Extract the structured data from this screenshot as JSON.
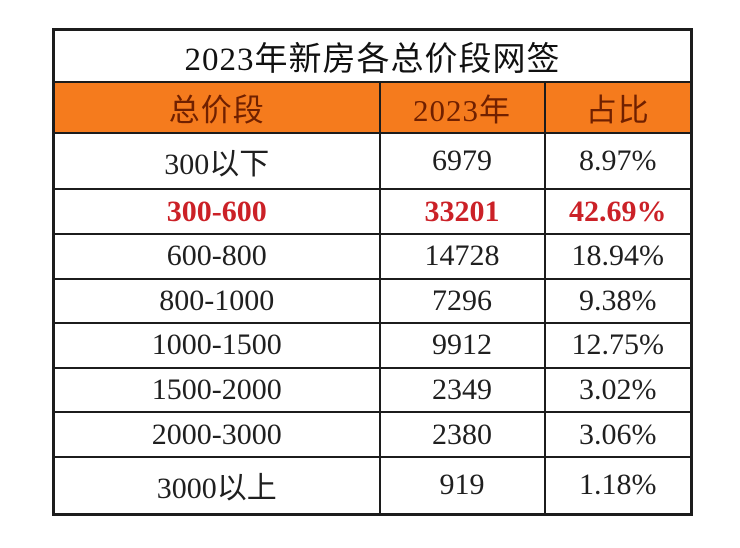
{
  "table": {
    "title": "2023年新房各总价段网签",
    "columns": {
      "range": "总价段",
      "value": "2023年",
      "share": "占比"
    },
    "rows": [
      {
        "range": "300以下",
        "value": "6979",
        "share": "8.97%",
        "highlight": false
      },
      {
        "range": "300-600",
        "value": "33201",
        "share": "42.69%",
        "highlight": true
      },
      {
        "range": "600-800",
        "value": "14728",
        "share": "18.94%",
        "highlight": false
      },
      {
        "range": "800-1000",
        "value": "7296",
        "share": "9.38%",
        "highlight": false
      },
      {
        "range": "1000-1500",
        "value": "9912",
        "share": "12.75%",
        "highlight": false
      },
      {
        "range": "1500-2000",
        "value": "2349",
        "share": "3.02%",
        "highlight": false
      },
      {
        "range": "2000-3000",
        "value": "2380",
        "share": "3.06%",
        "highlight": false
      },
      {
        "range": "3000以上",
        "value": "919",
        "share": "1.18%",
        "highlight": false
      }
    ],
    "colors": {
      "header_background": "#f57b1d",
      "header_text": "#702000",
      "highlight_text": "#cb2127",
      "body_text": "#1f1f1f",
      "border": "#1c1c1c",
      "page_background": "#ffffff"
    }
  },
  "chart_data": {
    "type": "table",
    "title": "2023年新房各总价段网签",
    "columns": [
      "总价段",
      "2023年",
      "占比"
    ],
    "rows": [
      [
        "300以下",
        6979,
        "8.97%"
      ],
      [
        "300-600",
        33201,
        "42.69%"
      ],
      [
        "600-800",
        14728,
        "18.94%"
      ],
      [
        "800-1000",
        7296,
        "9.38%"
      ],
      [
        "1000-1500",
        9912,
        "12.75%"
      ],
      [
        "1500-2000",
        2349,
        "3.02%"
      ],
      [
        "2000-3000",
        2380,
        "3.06%"
      ],
      [
        "3000以上",
        919,
        "1.18%"
      ]
    ],
    "highlighted_row": "300-600",
    "legend_position": "none",
    "grid": true
  }
}
